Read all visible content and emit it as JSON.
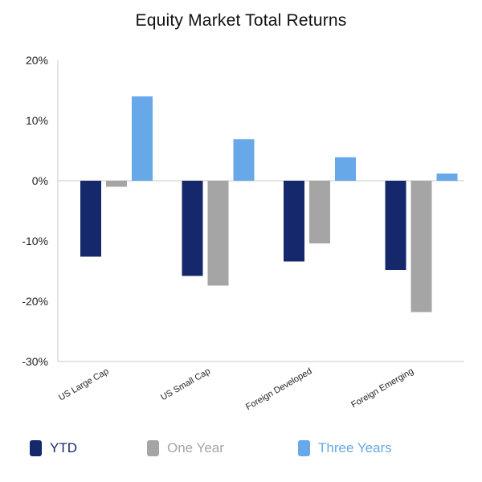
{
  "chart_data": {
    "type": "bar",
    "title": "Equity Market Total Returns",
    "xlabel": "",
    "ylabel": "",
    "categories": [
      "US Large Cap",
      "US Small Cap",
      "Foreign Developed",
      "Foreign Emerging"
    ],
    "series": [
      {
        "name": "YTD",
        "color": "#14286b",
        "values": [
          -12.6,
          -15.8,
          -13.4,
          -14.8
        ]
      },
      {
        "name": "One Year",
        "color": "#a5a5a5",
        "values": [
          -1.0,
          -17.4,
          -10.4,
          -21.8
        ]
      },
      {
        "name": "Three Years",
        "color": "#66a8e8",
        "values": [
          14.0,
          6.9,
          3.9,
          1.2
        ]
      }
    ],
    "ylim": [
      -30,
      20
    ],
    "yticks": [
      20,
      10,
      0,
      -10,
      -20,
      -30
    ],
    "ytick_labels": [
      "20%",
      "10%",
      "0%",
      "-10%",
      "-20%",
      "-30%"
    ],
    "grid": false,
    "legend_position": "bottom"
  }
}
